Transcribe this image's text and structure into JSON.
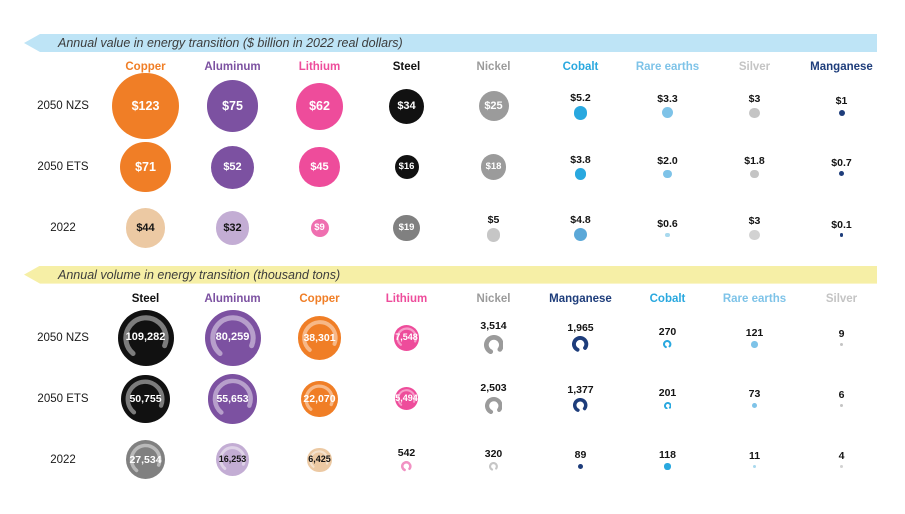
{
  "page": {
    "background": "#ffffff"
  },
  "banners": {
    "value": {
      "label": "Annual value in energy transition ($ billion in 2022 real dollars)",
      "color": "#BEE4F6"
    },
    "volume": {
      "label": "Annual volume in energy transition (thousand tons)",
      "color": "#F6EFA6"
    }
  },
  "chart_data": [
    {
      "type": "bubble",
      "title": "Annual value in energy transition ($ billion in 2022 real dollars)",
      "unit": "$ billion (2022 real dollars)",
      "rows": [
        "2050 NZS",
        "2050 ETS",
        "2022"
      ],
      "columns": [
        {
          "label": "Copper",
          "color": "#F07E26",
          "muted": "#ECC9A3"
        },
        {
          "label": "Aluminum",
          "color": "#7C51A1",
          "muted": "#C3ADD4"
        },
        {
          "label": "Lithium",
          "color": "#EE4C9B",
          "muted": "#EF6FB0"
        },
        {
          "label": "Steel",
          "color": "#111111",
          "muted": "#808080"
        },
        {
          "label": "Nickel",
          "color": "#9B9B9B",
          "muted": "#C6C6C6"
        },
        {
          "label": "Cobalt",
          "color": "#29A8DF",
          "muted": "#5BA8D8"
        },
        {
          "label": "Rare earths",
          "color": "#7EC3E8",
          "muted": "#A9D9EE"
        },
        {
          "label": "Silver",
          "color": "#C4C4C4",
          "muted": "#D2D2D2"
        },
        {
          "label": "Manganese",
          "color": "#1E3D7B",
          "muted": "#1E3D7B"
        }
      ],
      "values": [
        [
          123,
          75,
          62,
          34,
          25,
          5.2,
          3.3,
          3,
          1
        ],
        [
          71,
          52,
          45,
          16,
          18,
          3.8,
          2.0,
          1.8,
          0.7
        ],
        [
          44,
          32,
          9,
          19,
          5,
          4.8,
          0.6,
          3,
          0.1
        ]
      ],
      "labels": [
        [
          "$123",
          "$75",
          "$62",
          "$34",
          "$25",
          "$5.2",
          "$3.3",
          "$3",
          "$1"
        ],
        [
          "$71",
          "$52",
          "$45",
          "$16",
          "$18",
          "$3.8",
          "$2.0",
          "$1.8",
          "$0.7"
        ],
        [
          "$44",
          "$32",
          "$9",
          "$19",
          "$5",
          "$4.8",
          "$0.6",
          "$3",
          "$0.1"
        ]
      ]
    },
    {
      "type": "bubble",
      "title": "Annual volume in energy transition (thousand tons)",
      "unit": "thousand tons",
      "rows": [
        "2050 NZS",
        "2050 ETS",
        "2022"
      ],
      "columns": [
        {
          "label": "Steel",
          "color": "#111111",
          "muted": "#808080"
        },
        {
          "label": "Aluminum",
          "color": "#7C51A1",
          "muted": "#C3ADD4"
        },
        {
          "label": "Copper",
          "color": "#F07E26",
          "muted": "#ECC9A3"
        },
        {
          "label": "Lithium",
          "color": "#EE4C9B",
          "muted": "#F191C3"
        },
        {
          "label": "Nickel",
          "color": "#9B9B9B",
          "muted": "#C6C6C6"
        },
        {
          "label": "Manganese",
          "color": "#1E3D7B",
          "muted": "#1E3D7B"
        },
        {
          "label": "Cobalt",
          "color": "#29A8DF",
          "muted": "#29A8DF"
        },
        {
          "label": "Rare earths",
          "color": "#7EC3E8",
          "muted": "#A9D9EE"
        },
        {
          "label": "Silver",
          "color": "#C4C4C4",
          "muted": "#D2D2D2"
        }
      ],
      "values": [
        [
          109282,
          80259,
          38301,
          7548,
          3514,
          1965,
          270,
          121,
          9
        ],
        [
          50755,
          55653,
          22070,
          5494,
          2503,
          1377,
          201,
          73,
          6
        ],
        [
          27534,
          16253,
          6425,
          542,
          320,
          89,
          118,
          11,
          4
        ]
      ],
      "labels": [
        [
          "109,282",
          "80,259",
          "38,301",
          "7,548",
          "3,514",
          "1,965",
          "270",
          "121",
          "9"
        ],
        [
          "50,755",
          "55,653",
          "22,070",
          "5,494",
          "2,503",
          "1,377",
          "201",
          "73",
          "6"
        ],
        [
          "27,534",
          "16,253",
          "6,425",
          "542",
          "320",
          "89",
          "118",
          "11",
          "4"
        ]
      ]
    }
  ]
}
